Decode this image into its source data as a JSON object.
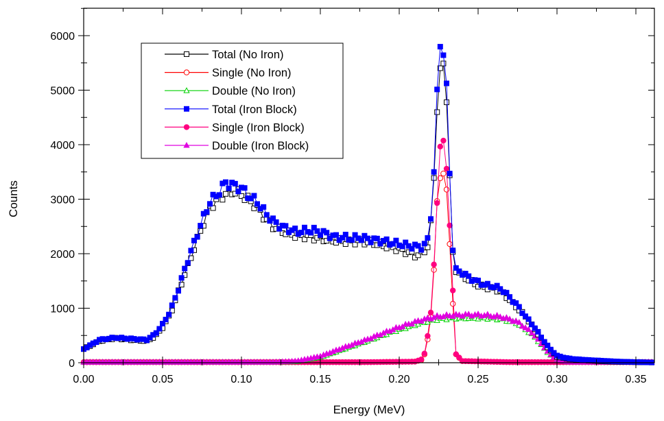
{
  "chart_data": {
    "type": "line",
    "xlabel": "Energy (MeV)",
    "ylabel": "Counts",
    "xlim": [
      0.0,
      0.36
    ],
    "ylim": [
      0,
      6000
    ],
    "xticks": [
      "0.00",
      "0.05",
      "0.10",
      "0.15",
      "0.20",
      "0.25",
      "0.30",
      "0.35"
    ],
    "yticks": [
      "0",
      "1000",
      "2000",
      "3000",
      "4000",
      "5000",
      "6000"
    ],
    "legend_position": "top-left",
    "grid": false,
    "series": [
      {
        "name": "Total (No Iron)",
        "marker": "square-open",
        "color": "#000000",
        "x": [
          0.0,
          0.01,
          0.02,
          0.03,
          0.04,
          0.045,
          0.05,
          0.055,
          0.06,
          0.065,
          0.07,
          0.075,
          0.08,
          0.085,
          0.09,
          0.095,
          0.1,
          0.105,
          0.11,
          0.115,
          0.12,
          0.125,
          0.13,
          0.135,
          0.14,
          0.145,
          0.15,
          0.155,
          0.16,
          0.165,
          0.17,
          0.175,
          0.18,
          0.185,
          0.19,
          0.195,
          0.2,
          0.205,
          0.21,
          0.215,
          0.218,
          0.22,
          0.222,
          0.224,
          0.226,
          0.228,
          0.23,
          0.232,
          0.234,
          0.236,
          0.24,
          0.245,
          0.25,
          0.255,
          0.26,
          0.265,
          0.27,
          0.275,
          0.28,
          0.285,
          0.29,
          0.295,
          0.3,
          0.305,
          0.31,
          0.32,
          0.33,
          0.34,
          0.35,
          0.36
        ],
        "y": [
          250,
          400,
          450,
          420,
          400,
          480,
          650,
          900,
          1300,
          1700,
          2100,
          2500,
          2850,
          3000,
          3100,
          3150,
          3080,
          2980,
          2850,
          2650,
          2500,
          2420,
          2370,
          2330,
          2320,
          2300,
          2280,
          2250,
          2240,
          2230,
          2220,
          2230,
          2210,
          2190,
          2150,
          2120,
          2080,
          2030,
          1970,
          2000,
          2150,
          2550,
          3400,
          4700,
          5300,
          5450,
          4900,
          3400,
          2000,
          1700,
          1600,
          1500,
          1420,
          1380,
          1360,
          1300,
          1150,
          1000,
          850,
          650,
          450,
          250,
          110,
          80,
          60,
          40,
          25,
          15,
          10,
          5
        ]
      },
      {
        "name": "Single (No Iron)",
        "marker": "circle-open",
        "color": "#ff0000",
        "x": [
          0.0,
          0.03,
          0.06,
          0.09,
          0.12,
          0.15,
          0.18,
          0.21,
          0.214,
          0.216,
          0.218,
          0.22,
          0.222,
          0.224,
          0.226,
          0.228,
          0.23,
          0.232,
          0.234,
          0.236,
          0.24,
          0.27,
          0.3,
          0.33,
          0.36
        ],
        "y": [
          10,
          10,
          10,
          10,
          10,
          10,
          10,
          20,
          50,
          150,
          420,
          860,
          1700,
          2900,
          3450,
          3500,
          3100,
          2200,
          1100,
          150,
          30,
          10,
          10,
          10,
          10
        ]
      },
      {
        "name": "Double (No Iron)",
        "marker": "triangle-open",
        "color": "#00d000",
        "x": [
          0.0,
          0.03,
          0.06,
          0.09,
          0.12,
          0.135,
          0.15,
          0.165,
          0.18,
          0.195,
          0.205,
          0.215,
          0.225,
          0.235,
          0.245,
          0.255,
          0.265,
          0.275,
          0.285,
          0.29,
          0.295,
          0.3,
          0.305,
          0.31,
          0.33,
          0.36
        ],
        "y": [
          10,
          10,
          10,
          10,
          10,
          20,
          100,
          250,
          400,
          560,
          650,
          740,
          800,
          820,
          820,
          820,
          800,
          720,
          500,
          330,
          160,
          60,
          20,
          10,
          10,
          10
        ]
      },
      {
        "name": "Total (Iron Block)",
        "marker": "square-filled",
        "color": "#0000ff",
        "x": [
          0.0,
          0.01,
          0.02,
          0.03,
          0.04,
          0.045,
          0.05,
          0.055,
          0.06,
          0.065,
          0.07,
          0.075,
          0.08,
          0.085,
          0.09,
          0.095,
          0.1,
          0.105,
          0.11,
          0.115,
          0.12,
          0.125,
          0.13,
          0.135,
          0.14,
          0.145,
          0.15,
          0.155,
          0.16,
          0.165,
          0.17,
          0.175,
          0.18,
          0.185,
          0.19,
          0.195,
          0.2,
          0.205,
          0.21,
          0.215,
          0.218,
          0.22,
          0.222,
          0.224,
          0.226,
          0.228,
          0.23,
          0.232,
          0.234,
          0.236,
          0.24,
          0.245,
          0.25,
          0.255,
          0.26,
          0.265,
          0.27,
          0.275,
          0.28,
          0.285,
          0.29,
          0.295,
          0.3,
          0.305,
          0.31,
          0.32,
          0.33,
          0.34,
          0.35,
          0.36
        ],
        "y": [
          250,
          420,
          460,
          440,
          420,
          520,
          700,
          950,
          1350,
          1800,
          2200,
          2600,
          2950,
          3100,
          3300,
          3250,
          3200,
          3050,
          2950,
          2750,
          2600,
          2500,
          2450,
          2400,
          2420,
          2430,
          2400,
          2350,
          2300,
          2300,
          2280,
          2300,
          2270,
          2250,
          2230,
          2200,
          2180,
          2150,
          2130,
          2120,
          2250,
          2700,
          3500,
          4900,
          5900,
          5700,
          5000,
          3500,
          2100,
          1700,
          1650,
          1550,
          1480,
          1420,
          1400,
          1350,
          1200,
          1050,
          850,
          680,
          470,
          270,
          130,
          90,
          70,
          50,
          35,
          20,
          12,
          5
        ]
      },
      {
        "name": "Single (Iron Block)",
        "marker": "circle-filled",
        "color": "#ff0080",
        "x": [
          0.0,
          0.03,
          0.06,
          0.09,
          0.12,
          0.15,
          0.18,
          0.21,
          0.214,
          0.216,
          0.218,
          0.22,
          0.222,
          0.224,
          0.226,
          0.228,
          0.23,
          0.232,
          0.234,
          0.236,
          0.24,
          0.27,
          0.3,
          0.33,
          0.36
        ],
        "y": [
          10,
          10,
          10,
          10,
          10,
          10,
          10,
          20,
          60,
          170,
          500,
          900,
          1800,
          3000,
          3900,
          4030,
          3650,
          2500,
          1300,
          160,
          30,
          10,
          10,
          10,
          10
        ]
      },
      {
        "name": "Double (Iron Block)",
        "marker": "triangle-filled",
        "color": "#e000e0",
        "x": [
          0.0,
          0.03,
          0.06,
          0.09,
          0.12,
          0.135,
          0.15,
          0.165,
          0.18,
          0.195,
          0.205,
          0.215,
          0.225,
          0.235,
          0.245,
          0.255,
          0.265,
          0.275,
          0.285,
          0.29,
          0.295,
          0.3,
          0.305,
          0.31,
          0.33,
          0.36
        ],
        "y": [
          10,
          10,
          10,
          10,
          10,
          30,
          120,
          280,
          430,
          600,
          700,
          790,
          850,
          870,
          880,
          870,
          840,
          750,
          530,
          350,
          170,
          60,
          20,
          10,
          10,
          10
        ]
      }
    ]
  }
}
